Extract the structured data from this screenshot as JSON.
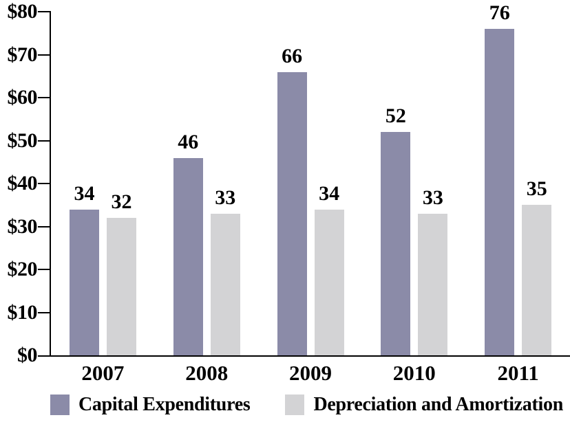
{
  "chart_data": {
    "type": "bar",
    "title": "",
    "categories": [
      "2007",
      "2008",
      "2009",
      "2010",
      "2011"
    ],
    "series": [
      {
        "name": "Capital Expenditures",
        "color": "#8B8BA8",
        "values": [
          34,
          46,
          66,
          52,
          76
        ]
      },
      {
        "name": "Depreciation and Amortization",
        "color": "#D3D3D5",
        "values": [
          32,
          33,
          34,
          33,
          35
        ]
      }
    ],
    "xlabel": "",
    "ylabel": "",
    "ylim": [
      0,
      80
    ],
    "ytick_step": 10,
    "ytick_labels": [
      "$0",
      "$10",
      "$20",
      "$30",
      "$40",
      "$50",
      "$60",
      "$70",
      "$80"
    ],
    "grid": false,
    "legend_position": "bottom",
    "bar_value_labels_shown": true
  },
  "colors": {
    "axis": "#000000",
    "text": "#000000",
    "background": "#FFFFFF",
    "capital_expenditures": "#8B8BA8",
    "depreciation_amortization": "#D3D3D5"
  }
}
